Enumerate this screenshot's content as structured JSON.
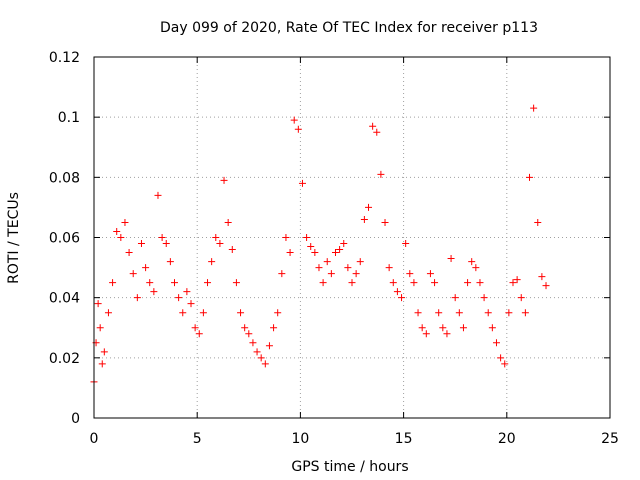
{
  "chart_data": {
    "type": "scatter",
    "title": "Day 099 of 2020, Rate Of TEC Index for receiver p113",
    "xlabel": "GPS time / hours",
    "ylabel": "ROTI / TECUs",
    "xlim": [
      0,
      25
    ],
    "ylim": [
      0,
      0.12
    ],
    "x_ticks": [
      "0",
      "5",
      "10",
      "15",
      "20",
      "25"
    ],
    "y_ticks": [
      "0",
      "0.02",
      "0.04",
      "0.06",
      "0.08",
      "0.1",
      "0.12"
    ],
    "grid": true,
    "marker": "+",
    "color": "#ff0000",
    "series": [
      {
        "x": [
          0.0,
          0.1,
          0.2,
          0.3,
          0.4,
          0.5,
          0.7,
          0.9,
          1.1,
          1.3,
          1.5,
          1.7,
          1.9,
          2.1,
          2.3,
          2.5,
          2.7,
          2.9,
          3.1,
          3.3,
          3.5,
          3.7,
          3.9,
          4.1,
          4.3,
          4.5,
          4.7,
          4.9,
          5.1,
          5.3,
          5.5,
          5.7,
          5.9,
          6.1,
          6.3,
          6.5,
          6.7,
          6.9,
          7.1,
          7.3,
          7.5,
          7.7,
          7.9,
          8.1,
          8.3,
          8.5,
          8.7,
          8.9,
          9.1,
          9.3,
          9.5,
          9.7,
          9.9,
          10.1,
          10.3,
          10.5,
          10.7,
          10.9,
          11.1,
          11.3,
          11.5,
          11.7,
          11.9,
          12.1,
          12.3,
          12.5,
          12.7,
          12.9,
          13.1,
          13.3,
          13.5,
          13.7,
          13.9,
          14.1,
          14.3,
          14.5,
          14.7,
          14.9,
          15.1,
          15.3,
          15.5,
          15.7,
          15.9,
          16.1,
          16.3,
          16.5,
          16.7,
          16.9,
          17.1,
          17.3,
          17.5,
          17.7,
          17.9,
          18.1,
          18.3,
          18.5,
          18.7,
          18.9,
          19.1,
          19.3,
          19.5,
          19.7,
          19.9,
          20.1,
          20.3,
          20.5,
          20.7,
          20.9,
          21.1,
          21.3,
          21.5,
          21.7,
          21.9
        ],
        "y": [
          0.012,
          0.025,
          0.038,
          0.03,
          0.018,
          0.022,
          0.035,
          0.045,
          0.062,
          0.06,
          0.065,
          0.055,
          0.048,
          0.04,
          0.058,
          0.05,
          0.045,
          0.042,
          0.074,
          0.06,
          0.058,
          0.052,
          0.045,
          0.04,
          0.035,
          0.042,
          0.038,
          0.03,
          0.028,
          0.035,
          0.045,
          0.052,
          0.06,
          0.058,
          0.079,
          0.065,
          0.056,
          0.045,
          0.035,
          0.03,
          0.028,
          0.025,
          0.022,
          0.02,
          0.018,
          0.024,
          0.03,
          0.035,
          0.048,
          0.06,
          0.055,
          0.099,
          0.096,
          0.078,
          0.06,
          0.057,
          0.055,
          0.05,
          0.045,
          0.052,
          0.048,
          0.055,
          0.056,
          0.058,
          0.05,
          0.045,
          0.048,
          0.052,
          0.066,
          0.07,
          0.097,
          0.095,
          0.081,
          0.065,
          0.05,
          0.045,
          0.042,
          0.04,
          0.058,
          0.048,
          0.045,
          0.035,
          0.03,
          0.028,
          0.048,
          0.045,
          0.035,
          0.03,
          0.028,
          0.053,
          0.04,
          0.035,
          0.03,
          0.045,
          0.052,
          0.05,
          0.045,
          0.04,
          0.035,
          0.03,
          0.025,
          0.02,
          0.018,
          0.035,
          0.045,
          0.046,
          0.04,
          0.035,
          0.08,
          0.103,
          0.065,
          0.047,
          0.044
        ]
      }
    ]
  }
}
